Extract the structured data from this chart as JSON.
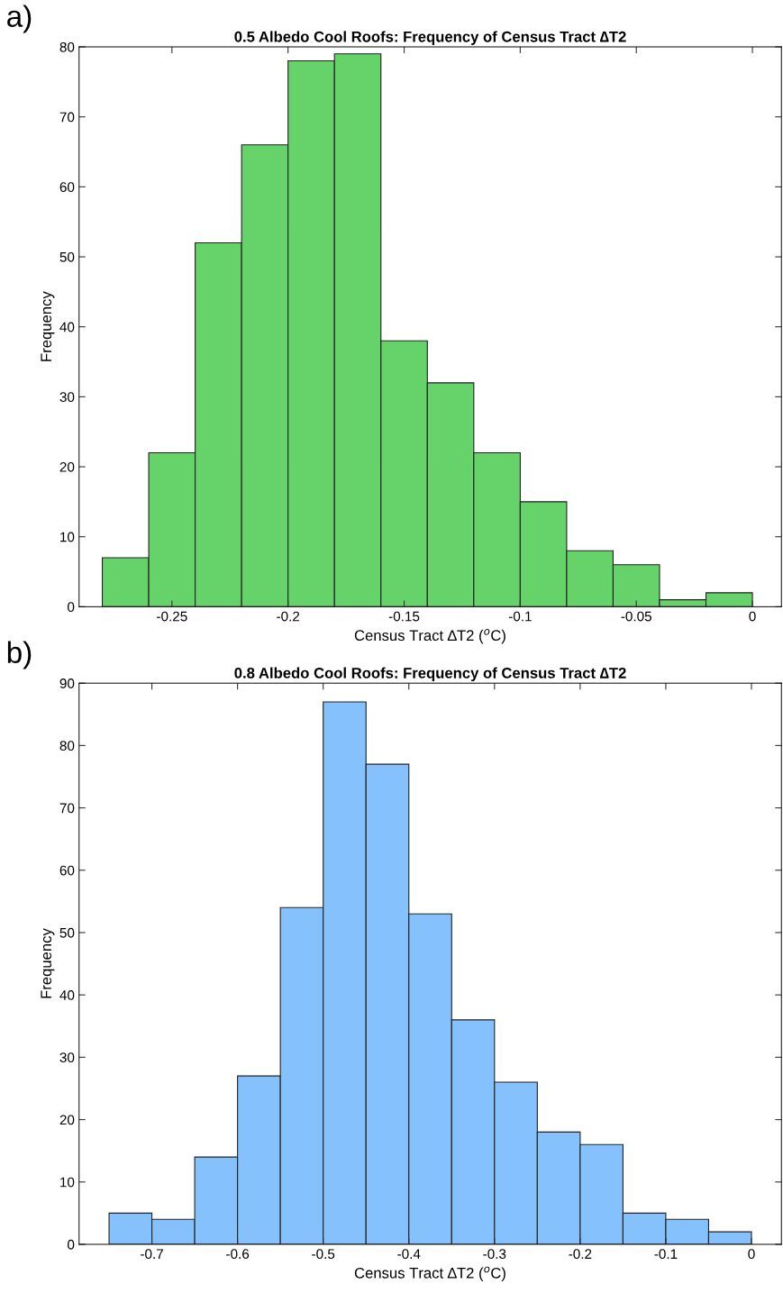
{
  "chart_data": [
    {
      "type": "histogram",
      "title": "0.5 Albedo Cool Roofs: Frequency of Census Tract ∆T2",
      "xlabel": "Census Tract ∆T2 ($^{o}$C)",
      "ylabel": "Frequency",
      "annotations": [
        "a)"
      ],
      "bins": [
        -0.28,
        -0.26,
        -0.24,
        -0.22,
        -0.2,
        -0.18,
        -0.16,
        -0.14,
        -0.12,
        -0.1,
        -0.08,
        -0.06,
        -0.04,
        -0.02,
        0
      ],
      "values": [
        7,
        22,
        52,
        66,
        78,
        79,
        38,
        32,
        22,
        15,
        8,
        6,
        1,
        2
      ],
      "color": "#66d36a",
      "xlim": [
        -0.29,
        0.0125
      ],
      "xticks": [
        -0.25,
        -0.2,
        -0.15,
        -0.1,
        -0.05,
        0
      ],
      "ylim": [
        0,
        80
      ],
      "yticks": [
        0,
        10,
        20,
        30,
        40,
        50,
        60,
        70,
        80
      ],
      "grid": false
    },
    {
      "type": "histogram",
      "title": "0.8 Albedo Cool Roofs: Frequency of Census Tract ∆T2",
      "xlabel": "Census Tract ∆T2 ($^{o}$C)",
      "ylabel": "Frequency",
      "annotations": [
        "b)"
      ],
      "bins": [
        -0.75,
        -0.7,
        -0.65,
        -0.6,
        -0.55,
        -0.5,
        -0.45,
        -0.4,
        -0.35,
        -0.3,
        -0.25,
        -0.2,
        -0.15,
        -0.1,
        -0.05,
        0
      ],
      "values": [
        5,
        4,
        14,
        27,
        54,
        87,
        77,
        53,
        36,
        26,
        18,
        16,
        5,
        4,
        2
      ],
      "color": "#85c1fc",
      "xlim": [
        -0.785,
        0.035
      ],
      "xticks": [
        -0.7,
        -0.6,
        -0.5,
        -0.4,
        -0.3,
        -0.2,
        -0.1,
        0
      ],
      "ylim": [
        0,
        90
      ],
      "yticks": [
        0,
        10,
        20,
        30,
        40,
        50,
        60,
        70,
        80,
        90
      ],
      "grid": false
    }
  ]
}
